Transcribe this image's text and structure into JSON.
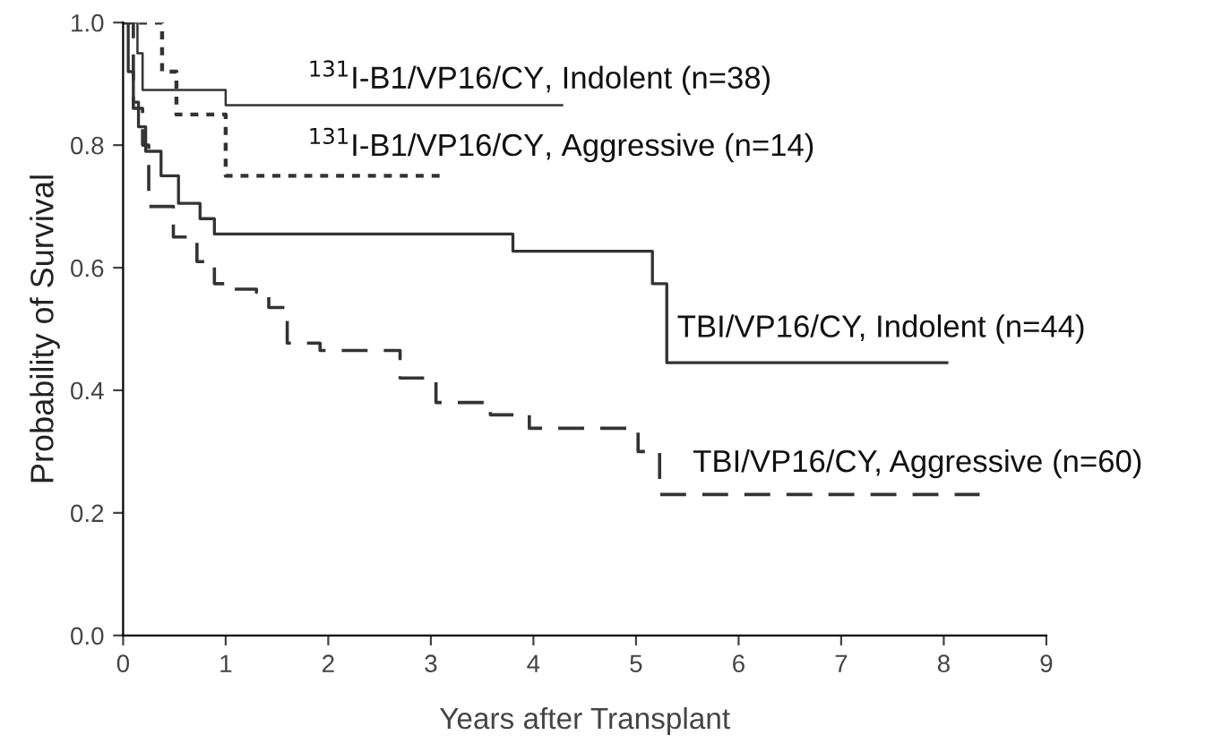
{
  "chart_data": {
    "type": "step",
    "xlabel": "Years after Transplant",
    "ylabel": "Probability of Survival",
    "xlim": [
      0,
      9
    ],
    "ylim": [
      0,
      1
    ],
    "xticks": [
      0,
      1,
      2,
      3,
      4,
      5,
      6,
      7,
      8,
      9
    ],
    "yticks": [
      {
        "value": 0,
        "label": "0.0"
      },
      {
        "value": 0.2,
        "label": "0.2"
      },
      {
        "value": 0.4,
        "label": "0.4"
      },
      {
        "value": 0.6,
        "label": "0.6"
      },
      {
        "value": 0.8,
        "label": "0.8"
      },
      {
        "value": 1,
        "label": "1.0"
      }
    ],
    "grid": false,
    "legend": false,
    "series": [
      {
        "name": "$^{131}$I-B1/VP16/CY, Indolent (n=38)",
        "color": "#333333",
        "line_style": "solid",
        "x": [
          0,
          0.14,
          0.19,
          1.0,
          4.28
        ],
        "values": [
          1,
          0.95,
          0.89,
          0.865,
          0.865
        ]
      },
      {
        "name": "$^{131}$I-B1/VP16/CY, Aggressive (n=14)",
        "color": "#333333",
        "line_style": "dotted",
        "x": [
          0,
          0.38,
          0.52,
          1.0,
          3.12
        ],
        "values": [
          1,
          0.92,
          0.85,
          0.75,
          0.75
        ]
      },
      {
        "name": "TBI/VP16/CY, Indolent (n=44)",
        "color": "#333333",
        "line_style": "solid",
        "x": [
          0,
          0.05,
          0.1,
          0.15,
          0.22,
          0.37,
          0.54,
          0.75,
          0.89,
          3.8,
          5.16,
          5.3,
          8.03
        ],
        "values": [
          1,
          0.92,
          0.87,
          0.83,
          0.79,
          0.75,
          0.705,
          0.68,
          0.655,
          0.627,
          0.574,
          0.445,
          0.445
        ]
      },
      {
        "name": "TBI/VP16/CY, Aggressive (n=60)",
        "color": "#333333",
        "line_style": "dashed",
        "x": [
          0,
          0.1,
          0.19,
          0.25,
          0.49,
          0.72,
          0.89,
          1.04,
          1.3,
          1.42,
          1.6,
          1.92,
          2.7,
          3.05,
          3.58,
          3.96,
          5.02,
          5.23,
          8.35
        ],
        "values": [
          1,
          0.86,
          0.8,
          0.7,
          0.65,
          0.61,
          0.574,
          0.565,
          0.56,
          0.535,
          0.477,
          0.465,
          0.42,
          0.38,
          0.36,
          0.338,
          0.3,
          0.23,
          0.23
        ]
      }
    ]
  }
}
